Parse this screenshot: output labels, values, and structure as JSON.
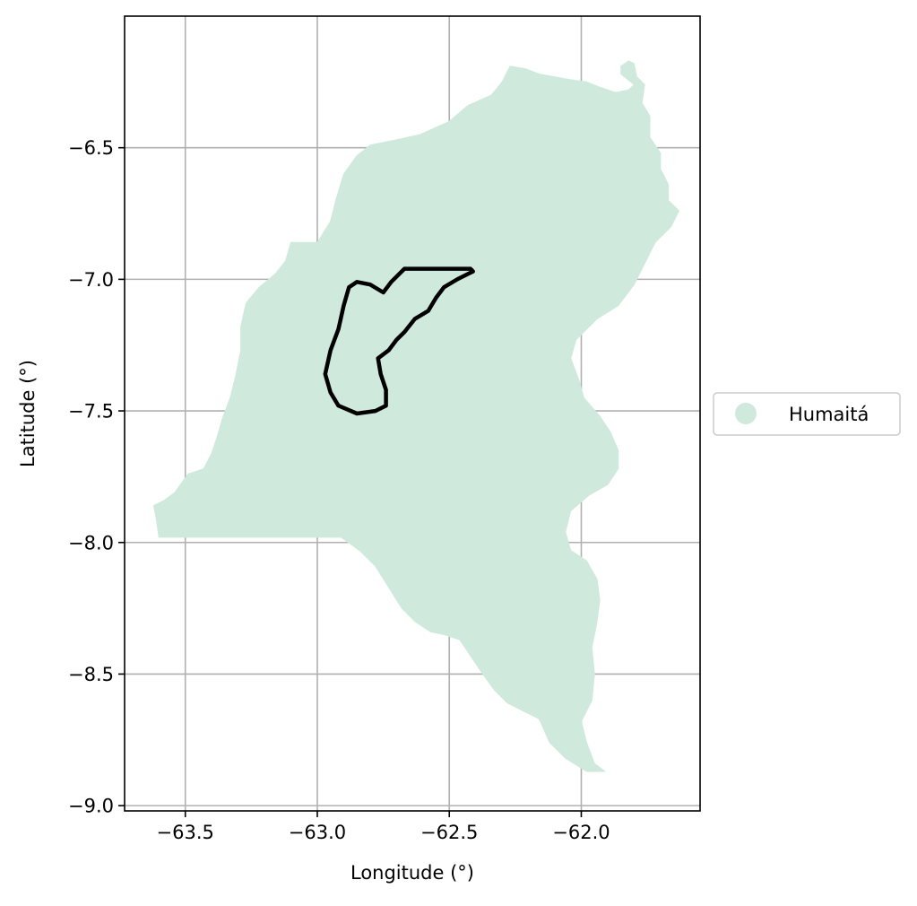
{
  "chart_data": {
    "type": "map",
    "title": "",
    "xlabel": "Longitude (°)",
    "ylabel": "Latitude (°)",
    "xlim": [
      -63.73,
      -61.55
    ],
    "ylim": [
      -9.02,
      -6.0
    ],
    "grid": true,
    "xticks": [
      -63.5,
      -63.0,
      -62.5,
      -62.0
    ],
    "yticks": [
      -6.5,
      -7.0,
      -7.5,
      -8.0,
      -8.5,
      -9.0
    ],
    "xtick_labels": [
      "−63.5",
      "−63.0",
      "−62.5",
      "−62.0"
    ],
    "ytick_labels": [
      "−6.5",
      "−7.0",
      "−7.5",
      "−8.0",
      "−8.5",
      "−9.0"
    ],
    "region": {
      "name": "Humaitá",
      "color": "#cfeadd",
      "outline": [
        [
          -62.27,
          -6.19
        ],
        [
          -62.21,
          -6.2
        ],
        [
          -62.16,
          -6.22
        ],
        [
          -62.05,
          -6.24
        ],
        [
          -61.98,
          -6.25
        ],
        [
          -61.93,
          -6.27
        ],
        [
          -61.87,
          -6.29
        ],
        [
          -61.82,
          -6.28
        ],
        [
          -61.8,
          -6.26
        ],
        [
          -61.85,
          -6.22
        ],
        [
          -61.85,
          -6.19
        ],
        [
          -61.82,
          -6.17
        ],
        [
          -61.8,
          -6.18
        ],
        [
          -61.79,
          -6.23
        ],
        [
          -61.76,
          -6.26
        ],
        [
          -61.77,
          -6.33
        ],
        [
          -61.74,
          -6.38
        ],
        [
          -61.74,
          -6.46
        ],
        [
          -61.7,
          -6.52
        ],
        [
          -61.7,
          -6.58
        ],
        [
          -61.67,
          -6.64
        ],
        [
          -61.67,
          -6.7
        ],
        [
          -61.63,
          -6.74
        ],
        [
          -61.66,
          -6.8
        ],
        [
          -61.72,
          -6.86
        ],
        [
          -61.76,
          -6.94
        ],
        [
          -61.8,
          -7.02
        ],
        [
          -61.86,
          -7.1
        ],
        [
          -61.94,
          -7.15
        ],
        [
          -62.02,
          -7.23
        ],
        [
          -62.04,
          -7.3
        ],
        [
          -62.01,
          -7.38
        ],
        [
          -61.99,
          -7.45
        ],
        [
          -61.93,
          -7.52
        ],
        [
          -61.89,
          -7.58
        ],
        [
          -61.86,
          -7.65
        ],
        [
          -61.86,
          -7.72
        ],
        [
          -61.9,
          -7.78
        ],
        [
          -61.97,
          -7.82
        ],
        [
          -62.04,
          -7.88
        ],
        [
          -62.06,
          -7.96
        ],
        [
          -62.04,
          -8.03
        ],
        [
          -61.98,
          -8.07
        ],
        [
          -61.94,
          -8.14
        ],
        [
          -61.93,
          -8.22
        ],
        [
          -61.94,
          -8.3
        ],
        [
          -61.96,
          -8.4
        ],
        [
          -61.95,
          -8.5
        ],
        [
          -61.96,
          -8.6
        ],
        [
          -62.0,
          -8.68
        ],
        [
          -61.98,
          -8.76
        ],
        [
          -61.95,
          -8.84
        ],
        [
          -61.91,
          -8.87
        ],
        [
          -61.98,
          -8.87
        ],
        [
          -62.06,
          -8.82
        ],
        [
          -62.12,
          -8.76
        ],
        [
          -62.16,
          -8.67
        ],
        [
          -62.22,
          -8.64
        ],
        [
          -62.28,
          -8.61
        ],
        [
          -62.33,
          -8.56
        ],
        [
          -62.38,
          -8.49
        ],
        [
          -62.42,
          -8.43
        ],
        [
          -62.46,
          -8.37
        ],
        [
          -62.52,
          -8.35
        ],
        [
          -62.57,
          -8.34
        ],
        [
          -62.63,
          -8.3
        ],
        [
          -62.68,
          -8.25
        ],
        [
          -62.73,
          -8.17
        ],
        [
          -62.78,
          -8.09
        ],
        [
          -62.84,
          -8.03
        ],
        [
          -62.91,
          -7.98
        ],
        [
          -63.05,
          -7.98
        ],
        [
          -63.2,
          -7.98
        ],
        [
          -63.4,
          -7.98
        ],
        [
          -63.6,
          -7.98
        ],
        [
          -63.61,
          -7.91
        ],
        [
          -63.62,
          -7.86
        ],
        [
          -63.58,
          -7.84
        ],
        [
          -63.54,
          -7.81
        ],
        [
          -63.49,
          -7.74
        ],
        [
          -63.43,
          -7.72
        ],
        [
          -63.4,
          -7.66
        ],
        [
          -63.38,
          -7.6
        ],
        [
          -63.36,
          -7.53
        ],
        [
          -63.33,
          -7.45
        ],
        [
          -63.31,
          -7.37
        ],
        [
          -63.29,
          -7.27
        ],
        [
          -63.29,
          -7.18
        ],
        [
          -63.27,
          -7.09
        ],
        [
          -63.22,
          -7.03
        ],
        [
          -63.16,
          -6.98
        ],
        [
          -63.12,
          -6.93
        ],
        [
          -63.1,
          -6.86
        ],
        [
          -63.0,
          -6.86
        ],
        [
          -62.95,
          -6.78
        ],
        [
          -62.93,
          -6.7
        ],
        [
          -62.9,
          -6.6
        ],
        [
          -62.85,
          -6.53
        ],
        [
          -62.8,
          -6.49
        ],
        [
          -62.7,
          -6.47
        ],
        [
          -62.61,
          -6.45
        ],
        [
          -62.5,
          -6.4
        ],
        [
          -62.43,
          -6.34
        ],
        [
          -62.34,
          -6.3
        ],
        [
          -62.3,
          -6.25
        ],
        [
          -62.27,
          -6.19
        ]
      ]
    },
    "highlight_outline": [
      [
        -62.67,
        -6.96
      ],
      [
        -62.42,
        -6.96
      ],
      [
        -62.41,
        -6.97
      ],
      [
        -62.43,
        -6.98
      ],
      [
        -62.47,
        -7.0
      ],
      [
        -62.52,
        -7.03
      ],
      [
        -62.55,
        -7.07
      ],
      [
        -62.58,
        -7.12
      ],
      [
        -62.63,
        -7.15
      ],
      [
        -62.67,
        -7.2
      ],
      [
        -62.7,
        -7.23
      ],
      [
        -62.73,
        -7.27
      ],
      [
        -62.77,
        -7.3
      ],
      [
        -62.76,
        -7.36
      ],
      [
        -62.74,
        -7.42
      ],
      [
        -62.74,
        -7.48
      ],
      [
        -62.78,
        -7.5
      ],
      [
        -62.85,
        -7.51
      ],
      [
        -62.92,
        -7.48
      ],
      [
        -62.95,
        -7.43
      ],
      [
        -62.97,
        -7.36
      ],
      [
        -62.95,
        -7.27
      ],
      [
        -62.92,
        -7.19
      ],
      [
        -62.9,
        -7.1
      ],
      [
        -62.88,
        -7.03
      ],
      [
        -62.85,
        -7.01
      ],
      [
        -62.8,
        -7.02
      ],
      [
        -62.75,
        -7.05
      ],
      [
        -62.72,
        -7.01
      ],
      [
        -62.67,
        -6.96
      ]
    ]
  },
  "legend": {
    "items": [
      {
        "label": "Humaitá",
        "color": "#cfeadd"
      }
    ]
  }
}
